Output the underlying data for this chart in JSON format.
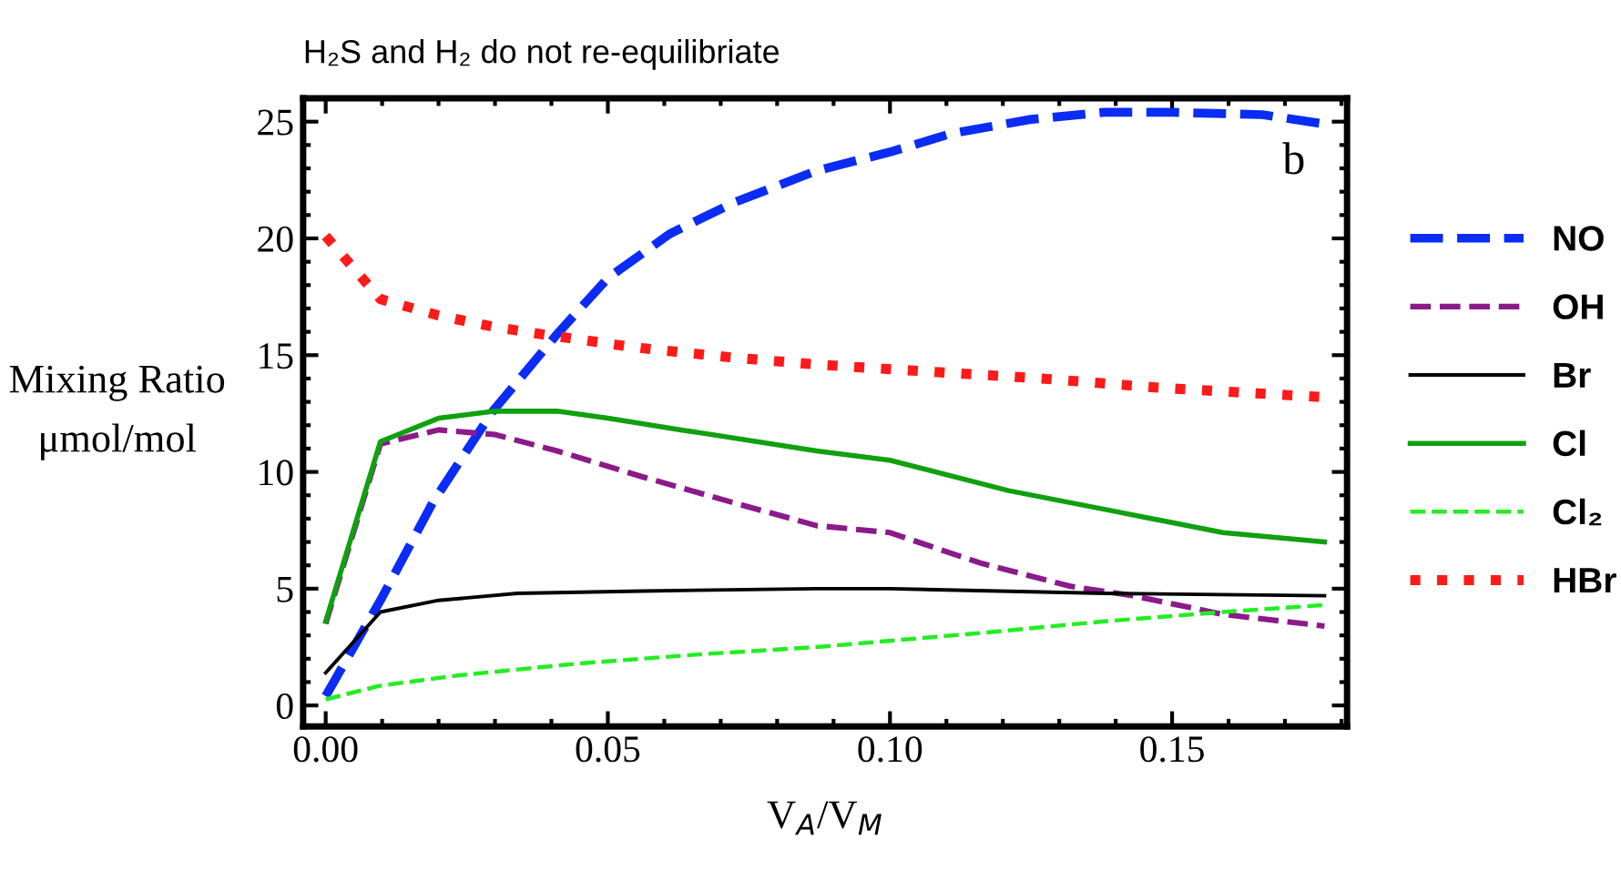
{
  "chart_data": {
    "type": "line",
    "title": "H₂S and H₂ do not re-equilibriate",
    "xlabel": "V$_{A}$/V$_{M}$",
    "ylabel": "Mixing Ratio\nμmol/mol",
    "annotations": [
      "b"
    ],
    "xlim": [
      -0.004,
      0.181
    ],
    "ylim": [
      -0.9,
      26
    ],
    "xticks": [
      {
        "value": 0,
        "label": "0.00"
      },
      {
        "value": 0.05,
        "label": "0.05"
      },
      {
        "value": 0.1,
        "label": "0.10"
      },
      {
        "value": 0.15,
        "label": "0.15"
      }
    ],
    "yticks": [
      0,
      5,
      10,
      15,
      20,
      25
    ],
    "grid": false,
    "legend": "right",
    "marker": "none",
    "series": [
      {
        "name": "NO",
        "color": "#0a2cf5",
        "line_style": "dashed",
        "x": [
          0,
          0.0097,
          0.019,
          0.0296,
          0.041,
          0.05,
          0.061,
          0.072,
          0.087,
          0.1,
          0.111,
          0.125,
          0.138,
          0.15,
          0.166,
          0.177
        ],
        "values": [
          0.4,
          4.5,
          8.7,
          12.6,
          15.9,
          18.3,
          20.2,
          21.5,
          22.9,
          23.7,
          24.5,
          25.1,
          25.4,
          25.4,
          25.3,
          24.9
        ]
      },
      {
        "name": "OH",
        "color": "#8b1a8b",
        "line_style": "dashed",
        "x": [
          0,
          0.0097,
          0.02,
          0.03,
          0.041,
          0.056,
          0.072,
          0.087,
          0.1,
          0.116,
          0.132,
          0.143,
          0.159,
          0.177
        ],
        "values": [
          3.5,
          11.2,
          11.8,
          11.6,
          10.9,
          9.8,
          8.7,
          7.7,
          7.4,
          6.1,
          5.1,
          4.7,
          3.9,
          3.4
        ]
      },
      {
        "name": "Br",
        "color": "#000000",
        "line_style": "solid",
        "x": [
          0,
          0.0097,
          0.02,
          0.034,
          0.056,
          0.087,
          0.1,
          0.138,
          0.177
        ],
        "values": [
          1.4,
          4.0,
          4.5,
          4.8,
          4.9,
          5.0,
          5.0,
          4.8,
          4.7
        ]
      },
      {
        "name": "Cl",
        "color": "#10a010",
        "line_style": "solid",
        "x": [
          0,
          0.0097,
          0.02,
          0.03,
          0.041,
          0.05,
          0.063,
          0.087,
          0.1,
          0.121,
          0.138,
          0.159,
          0.177
        ],
        "values": [
          3.6,
          11.3,
          12.3,
          12.6,
          12.6,
          12.3,
          11.8,
          10.9,
          10.5,
          9.2,
          8.4,
          7.4,
          7.0
        ]
      },
      {
        "name": "Cl₂",
        "color": "#22ee22",
        "line_style": "dashed",
        "x": [
          0,
          0.0097,
          0.024,
          0.045,
          0.067,
          0.087,
          0.116,
          0.138,
          0.159,
          0.177
        ],
        "values": [
          0.26,
          0.85,
          1.3,
          1.8,
          2.2,
          2.5,
          3.1,
          3.6,
          4.0,
          4.3
        ]
      },
      {
        "name": "HBr",
        "color": "#ff1a1a",
        "line_style": "dotted",
        "x": [
          0,
          0.0097,
          0.02,
          0.03,
          0.041,
          0.056,
          0.072,
          0.087,
          0.1,
          0.127,
          0.148,
          0.177
        ],
        "values": [
          20.1,
          17.4,
          16.7,
          16.2,
          15.8,
          15.3,
          14.9,
          14.6,
          14.4,
          14.0,
          13.6,
          13.2
        ]
      }
    ]
  }
}
